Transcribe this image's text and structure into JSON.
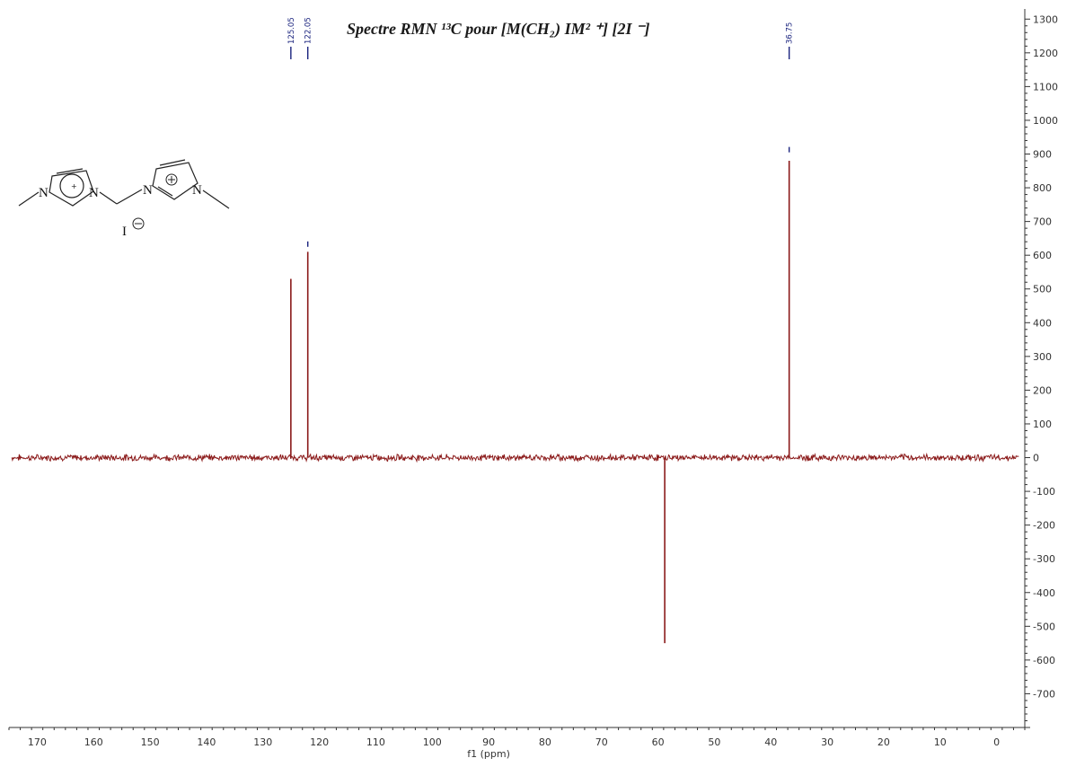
{
  "chart_data": {
    "type": "line",
    "title": "Spectre RMN ¹³C pour [M(CH₂) IM² ⁺] [2I ⁻]",
    "xlabel": "f1 (ppm)",
    "ylabel": "",
    "xlim": [
      175,
      -5
    ],
    "ylim": [
      -800,
      1330
    ],
    "x_ticks": [
      170,
      160,
      150,
      140,
      130,
      120,
      110,
      100,
      90,
      80,
      70,
      60,
      50,
      40,
      30,
      20,
      10,
      0
    ],
    "y_ticks": [
      1300,
      1200,
      1100,
      1000,
      900,
      800,
      700,
      600,
      500,
      400,
      300,
      200,
      100,
      0,
      -100,
      -200,
      -300,
      -400,
      -500,
      -600,
      -700
    ],
    "series": [
      {
        "name": "",
        "color": "#8b1a1a",
        "peaks": [
          {
            "x": 125.05,
            "y": 530
          },
          {
            "x": 122.05,
            "y": 610
          },
          {
            "x": 58.8,
            "y": -550
          },
          {
            "x": 36.75,
            "y": 880
          }
        ]
      }
    ],
    "peak_labels": [
      {
        "x": 125.05,
        "text": "125.05"
      },
      {
        "x": 122.05,
        "text": "122.05"
      },
      {
        "x": 36.75,
        "text": "36.75"
      }
    ],
    "integral_marks": [
      {
        "x": 122.05,
        "y": 625
      },
      {
        "x": 36.75,
        "y": 905
      }
    ],
    "structure": {
      "atoms": [
        "N",
        "N",
        "N",
        "N"
      ],
      "counterion": "I"
    }
  }
}
